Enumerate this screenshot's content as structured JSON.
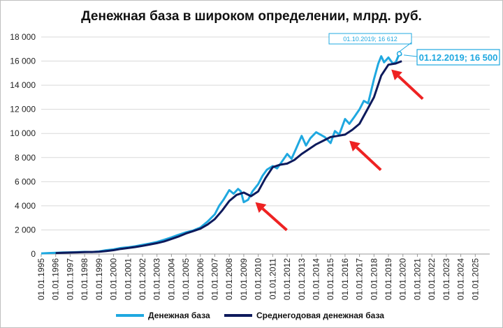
{
  "chart_data": {
    "type": "line",
    "title": "Денежная база в широком определении, млрд. руб.",
    "ylim": [
      0,
      18000
    ],
    "y_ticks": [
      "0",
      "2 000",
      "4 000",
      "6 000",
      "8 000",
      "10 000",
      "12 000",
      "14 000",
      "16 000",
      "18 000"
    ],
    "y_tick_values": [
      0,
      2000,
      4000,
      6000,
      8000,
      10000,
      12000,
      14000,
      16000,
      18000
    ],
    "x_ticks": [
      "01.01.1995",
      "01.01.1996",
      "01.01.1997",
      "01.01.1998",
      "01.01.1999",
      "01.01.2000",
      "01.01.2001",
      "01.01.2002",
      "01.01.2003",
      "01.01.2004",
      "01.01.2005",
      "01.01.2006",
      "01.01.2007",
      "01.01.2008",
      "01.01.2009",
      "01.01.2010",
      "01.01.2011",
      "01.01.2012",
      "01.01.2013",
      "01.01.2014",
      "01.01.2015",
      "01.01.2016",
      "01.01.2017",
      "01.01.2018",
      "01.01.2019",
      "01.01.2020",
      "01.01.2021",
      "01.01.2022",
      "01.01.2023",
      "01.01.2024",
      "01.01.2025"
    ],
    "xlim": [
      1995.0,
      2026.0
    ],
    "grid": "horizontal",
    "legend_position": "bottom",
    "series": [
      {
        "name": "Денежная база",
        "color": "#1fa8e0",
        "x": [
          1995.0,
          1995.5,
          1996.0,
          1996.5,
          1997.0,
          1997.5,
          1998.0,
          1998.5,
          1999.0,
          1999.5,
          2000.0,
          2000.5,
          2001.0,
          2001.5,
          2002.0,
          2002.5,
          2003.0,
          2003.5,
          2004.0,
          2004.5,
          2005.0,
          2005.5,
          2006.0,
          2006.5,
          2007.0,
          2007.3,
          2007.6,
          2008.0,
          2008.3,
          2008.6,
          2008.8,
          2009.0,
          2009.3,
          2009.6,
          2010.0,
          2010.3,
          2010.6,
          2011.0,
          2011.3,
          2011.6,
          2012.0,
          2012.3,
          2012.6,
          2013.0,
          2013.3,
          2013.6,
          2014.0,
          2014.3,
          2014.6,
          2015.0,
          2015.3,
          2015.6,
          2016.0,
          2016.3,
          2016.6,
          2017.0,
          2017.3,
          2017.6,
          2018.0,
          2018.3,
          2018.5,
          2018.7,
          2019.0,
          2019.3,
          2019.5,
          2019.75,
          2019.92
        ],
        "y": [
          50,
          80,
          100,
          130,
          140,
          160,
          180,
          170,
          220,
          320,
          380,
          500,
          560,
          650,
          760,
          870,
          1000,
          1180,
          1380,
          1600,
          1800,
          1950,
          2200,
          2700,
          3300,
          4000,
          4500,
          5300,
          5000,
          5400,
          5200,
          4300,
          4500,
          5200,
          5800,
          6500,
          7000,
          7300,
          7100,
          7600,
          8300,
          7900,
          8700,
          9800,
          9000,
          9600,
          10100,
          9900,
          9700,
          9200,
          10200,
          9900,
          11200,
          10800,
          11300,
          12000,
          12700,
          12500,
          14500,
          15800,
          16400,
          15900,
          16300,
          15800,
          15900,
          16612,
          16500
        ]
      },
      {
        "name": "Среднегодовая денежная база",
        "color": "#0d1a5c",
        "x": [
          1996.0,
          1996.5,
          1997.0,
          1997.5,
          1998.0,
          1998.5,
          1999.0,
          1999.5,
          2000.0,
          2000.5,
          2001.0,
          2001.5,
          2002.0,
          2002.5,
          2003.0,
          2003.5,
          2004.0,
          2004.5,
          2005.0,
          2005.5,
          2006.0,
          2006.5,
          2007.0,
          2007.5,
          2008.0,
          2008.5,
          2009.0,
          2009.5,
          2010.0,
          2010.5,
          2011.0,
          2011.5,
          2012.0,
          2012.5,
          2013.0,
          2013.5,
          2014.0,
          2014.5,
          2015.0,
          2015.5,
          2016.0,
          2016.5,
          2017.0,
          2017.5,
          2018.0,
          2018.5,
          2019.0,
          2019.5,
          2019.92
        ],
        "y": [
          80,
          100,
          120,
          140,
          160,
          170,
          190,
          250,
          320,
          420,
          500,
          580,
          680,
          790,
          900,
          1050,
          1250,
          1450,
          1700,
          1900,
          2100,
          2450,
          2900,
          3600,
          4400,
          4900,
          5100,
          4800,
          5200,
          6300,
          7200,
          7400,
          7500,
          7800,
          8300,
          8700,
          9100,
          9400,
          9700,
          9800,
          9900,
          10300,
          10800,
          11900,
          13000,
          14800,
          15700,
          15800,
          16000
        ]
      }
    ],
    "annotations": [
      {
        "text": "01.10.2019;  16 612",
        "x": 2019.75,
        "y": 16612,
        "style": "small-box"
      },
      {
        "text": "01.12.2019;  16 500",
        "x": 2019.92,
        "y": 16500,
        "style": "large-box"
      }
    ],
    "arrows": [
      {
        "to_x": 2009.8,
        "to_y": 4300
      },
      {
        "to_x": 2016.3,
        "to_y": 9400
      },
      {
        "to_x": 2019.2,
        "to_y": 15300
      }
    ],
    "arrow_color": "#ee2222"
  }
}
